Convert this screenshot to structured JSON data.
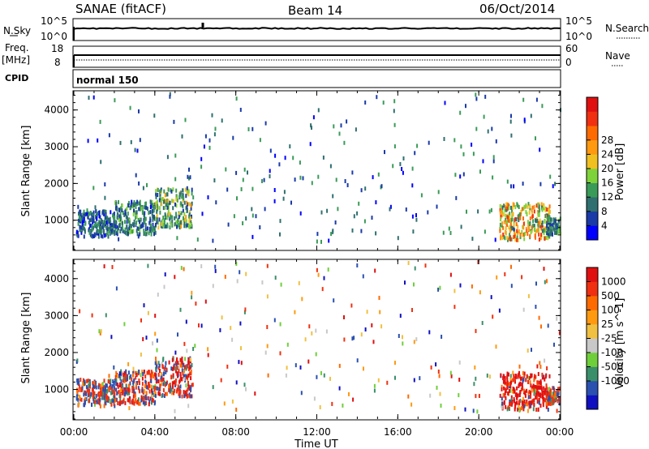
{
  "header": {
    "station": "SANAE (fitACF)",
    "beam": "Beam 14",
    "date": "06/Oct/2014"
  },
  "noise_panel": {
    "left_label": "N.Sky",
    "right_label": "N.Search",
    "left_ticks": [
      "10^5",
      "10^0"
    ],
    "right_ticks": [
      "10^5",
      "10^0"
    ]
  },
  "freq_panel": {
    "left_label": "Freq.",
    "left_unit": "[MHz]",
    "right_label": "Nave",
    "left_ticks": [
      "18",
      "8"
    ],
    "right_ticks": [
      "60",
      "0"
    ]
  },
  "cpid": {
    "label": "CPID",
    "value": "normal 150"
  },
  "chart_data": [
    {
      "type": "heatmap",
      "name": "power",
      "ylabel": "Slant Range [km]",
      "ylim": [
        200,
        4500
      ],
      "yticks": [
        "1000",
        "2000",
        "3000",
        "4000"
      ],
      "colorbar": {
        "label": "Power [dB]",
        "ticks": [
          "4",
          "8",
          "12",
          "16",
          "20",
          "24",
          "28"
        ],
        "colors": [
          "#0000ff",
          "#1a3aa8",
          "#2f6f6f",
          "#3a9b58",
          "#7fd33a",
          "#f0c020",
          "#ff9a10",
          "#ff6a00",
          "#f03010",
          "#e01010"
        ]
      },
      "clusters": [
        {
          "t_start": 0.1,
          "t_end": 2.0,
          "r_min": 550,
          "r_max": 1250,
          "dB_min": 2,
          "dB_max": 12
        },
        {
          "t_start": 2.0,
          "t_end": 4.0,
          "r_min": 600,
          "r_max": 1500,
          "dB_min": 3,
          "dB_max": 14
        },
        {
          "t_start": 4.0,
          "t_end": 5.8,
          "r_min": 800,
          "r_max": 1850,
          "dB_min": 4,
          "dB_max": 20
        },
        {
          "t_start": 21.0,
          "t_end": 23.5,
          "r_min": 450,
          "r_max": 1450,
          "dB_min": 8,
          "dB_max": 28
        },
        {
          "t_start": 23.3,
          "t_end": 24.0,
          "r_min": 600,
          "r_max": 1050,
          "dB_min": 4,
          "dB_max": 16
        }
      ]
    },
    {
      "type": "heatmap",
      "name": "velocity",
      "ylabel": "Slant Range [km]",
      "ylim": [
        200,
        4500
      ],
      "yticks": [
        "1000",
        "2000",
        "3000",
        "4000"
      ],
      "colorbar": {
        "label": "Velocity [m s^-1]",
        "ticks": [
          "1000",
          "500",
          "100",
          "25",
          "-25",
          "-100",
          "-500",
          "-1000"
        ],
        "colors": [
          "#1010c0",
          "#2a50b0",
          "#3a8f6a",
          "#6fcf3a",
          "#c8c8c8",
          "#f0c040",
          "#ff9a10",
          "#ff6a00",
          "#f03010",
          "#e01010"
        ]
      },
      "clusters": [
        {
          "t_start": 0.1,
          "t_end": 2.0,
          "r_min": 550,
          "r_max": 1250,
          "v_min": -300,
          "v_max": 300
        },
        {
          "t_start": 2.0,
          "t_end": 4.0,
          "r_min": 600,
          "r_max": 1500,
          "v_min": -400,
          "v_max": 200
        },
        {
          "t_start": 4.0,
          "t_end": 5.8,
          "r_min": 800,
          "r_max": 1850,
          "v_min": -500,
          "v_max": 300
        },
        {
          "t_start": 21.0,
          "t_end": 23.5,
          "r_min": 450,
          "r_max": 1450,
          "v_min": -1000,
          "v_max": 150
        },
        {
          "t_start": 23.3,
          "t_end": 24.0,
          "r_min": 600,
          "r_max": 1050,
          "v_min": -300,
          "v_max": 200
        }
      ]
    }
  ],
  "time_axis": {
    "xlabel": "Time UT",
    "xlim": [
      0,
      24
    ],
    "ticks": [
      "00:00",
      "04:00",
      "08:00",
      "12:00",
      "16:00",
      "20:00",
      "00:00"
    ]
  }
}
